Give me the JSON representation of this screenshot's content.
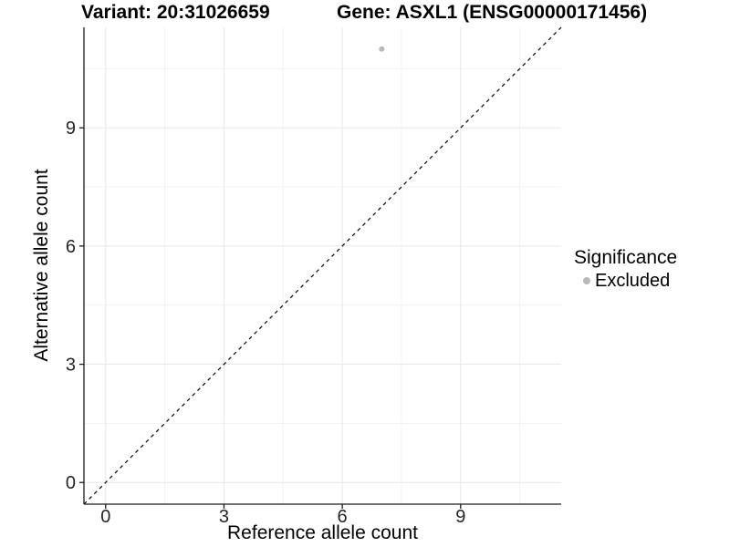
{
  "titles": {
    "variant": "Variant: 20:31026659",
    "gene": "Gene: ASXL1 (ENSG00000171456)"
  },
  "axes": {
    "x_label": "Reference allele count",
    "y_label": "Alternative allele count"
  },
  "legend": {
    "title": "Significance",
    "items": [
      {
        "label": "Excluded",
        "color": "#b9b9b9"
      }
    ]
  },
  "colors": {
    "axis_line": "#1a1a1a",
    "tick_label": "#262626",
    "grid_major": "#e8e8e8",
    "grid_minor": "#f3f3f3",
    "reference_line": "#000000",
    "excluded_point": "#b9b9b9",
    "background": "#ffffff"
  },
  "chart_data": {
    "type": "scatter",
    "title": "Variant: 20:31026659   Gene: ASXL1 (ENSG00000171456)",
    "xlabel": "Reference allele count",
    "ylabel": "Alternative allele count",
    "xlim": [
      -0.55,
      11.55
    ],
    "ylim": [
      -0.55,
      11.55
    ],
    "x_ticks": [
      0,
      3,
      6,
      9
    ],
    "y_ticks": [
      0,
      3,
      6,
      9
    ],
    "x_minor_ticks": [
      1.5,
      4.5,
      7.5,
      10.5
    ],
    "y_minor_ticks": [
      1.5,
      4.5,
      7.5,
      10.5
    ],
    "grid": true,
    "series": [
      {
        "name": "Excluded",
        "color": "#b9b9b9",
        "points": [
          {
            "x": 7,
            "y": 11
          }
        ]
      }
    ],
    "reference_line": {
      "type": "identity",
      "slope": 1,
      "intercept": 0,
      "style": "dashed",
      "color": "#000000"
    },
    "legend": {
      "title": "Significance",
      "position": "right",
      "entries": [
        "Excluded"
      ]
    }
  }
}
